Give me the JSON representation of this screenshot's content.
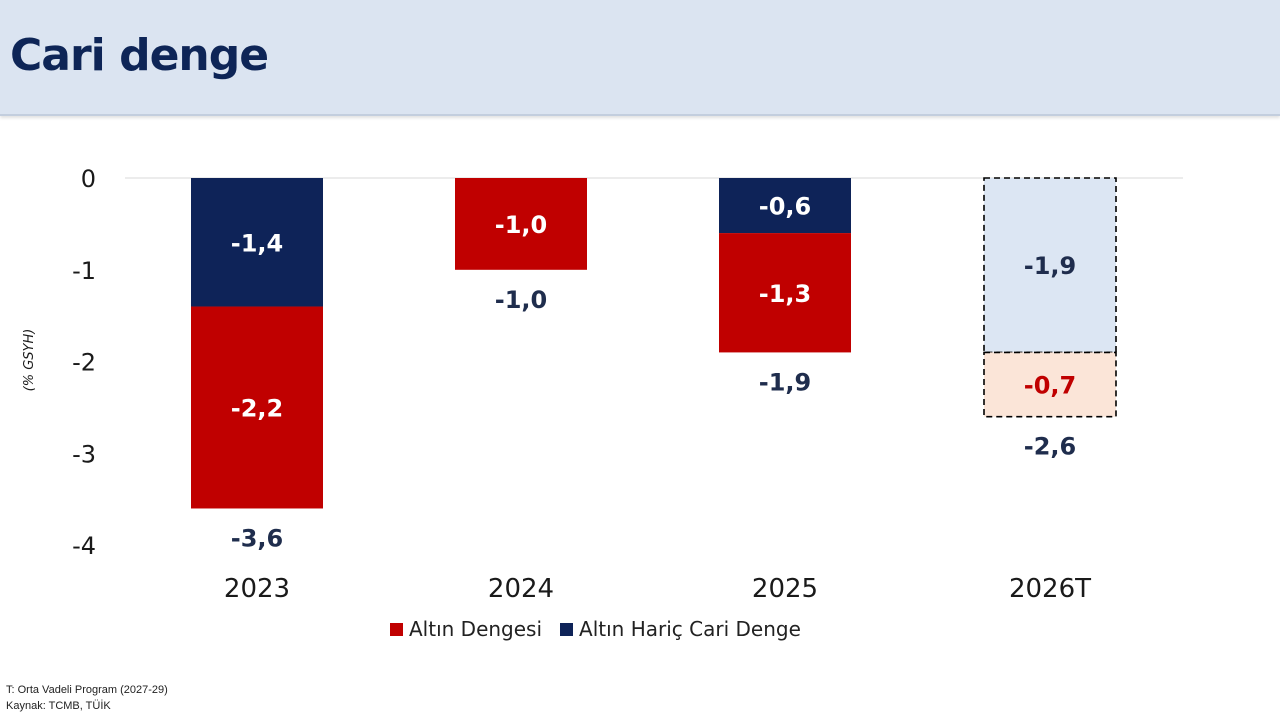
{
  "header": {
    "title": "Cari denge"
  },
  "chart_data": {
    "type": "bar",
    "stacked": true,
    "categories": [
      "2023",
      "2024",
      "2025",
      "2026T"
    ],
    "ylabel": "(% GSYH)",
    "ylim": [
      -4,
      0
    ],
    "yticks": [
      "0",
      "-1",
      "-2",
      "-3",
      "-4"
    ],
    "projected_category": "2026T",
    "grid": false,
    "series": [
      {
        "name": "Altın Hariç Cari Denge",
        "color": "#0e2358",
        "projected_color": "#dce6f3",
        "values": [
          -1.4,
          null,
          -0.6,
          -1.9
        ],
        "labels": [
          "-1,4",
          "",
          "-0,6",
          "-1,9"
        ]
      },
      {
        "name": "Altın Dengesi",
        "color": "#c00000",
        "projected_color": "#fbe5d8",
        "values": [
          -2.2,
          -1.0,
          -1.3,
          -0.7
        ],
        "labels": [
          "-2,2",
          "-1,0",
          "-1,3",
          "-0,7"
        ]
      }
    ],
    "totals": [
      -3.6,
      -1.0,
      -1.9,
      -2.6
    ],
    "total_labels": [
      "-3,6",
      "-1,0",
      "-1,9",
      "-2,6"
    ],
    "legend": [
      "Altın Dengesi",
      "Altın Hariç Cari Denge"
    ],
    "legend_position": "bottom"
  },
  "legend": {
    "items": [
      {
        "label": "Altın Dengesi",
        "color": "#c00000"
      },
      {
        "label": "Altın Hariç Cari Denge",
        "color": "#0e2358"
      }
    ]
  },
  "footnotes": {
    "projection_note": "T: Orta Vadeli Program (2027-29)",
    "source": "Kaynak: TCMB, TÜİK"
  }
}
